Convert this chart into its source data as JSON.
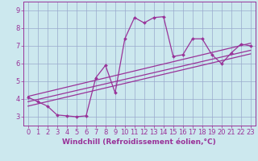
{
  "xlabel": "Windchill (Refroidissement éolien,°C)",
  "background_color": "#cce8ee",
  "line_color": "#993399",
  "grid_color": "#99aacc",
  "xlim": [
    -0.5,
    23.5
  ],
  "ylim": [
    2.5,
    9.5
  ],
  "xticks": [
    0,
    1,
    2,
    3,
    4,
    5,
    6,
    7,
    8,
    9,
    10,
    11,
    12,
    13,
    14,
    15,
    16,
    17,
    18,
    19,
    20,
    21,
    22,
    23
  ],
  "yticks": [
    3,
    4,
    5,
    6,
    7,
    8,
    9
  ],
  "main_x": [
    0,
    1,
    2,
    3,
    4,
    5,
    6,
    7,
    8,
    9,
    10,
    11,
    12,
    13,
    14,
    15,
    16,
    17,
    18,
    19,
    20,
    21,
    22,
    23
  ],
  "main_y": [
    4.1,
    3.85,
    3.6,
    3.1,
    3.05,
    3.0,
    3.05,
    5.2,
    5.9,
    4.35,
    7.4,
    8.6,
    8.3,
    8.6,
    8.65,
    6.4,
    6.5,
    7.4,
    7.4,
    6.5,
    6.0,
    6.6,
    7.1,
    7.0
  ],
  "line1_x": [
    0,
    23
  ],
  "line1_y": [
    3.6,
    6.55
  ],
  "line2_x": [
    0,
    23
  ],
  "line2_y": [
    3.85,
    6.75
  ],
  "line3_x": [
    0,
    23
  ],
  "line3_y": [
    4.15,
    7.15
  ],
  "xlabel_fontsize": 6.5,
  "tick_fontsize": 6.0
}
